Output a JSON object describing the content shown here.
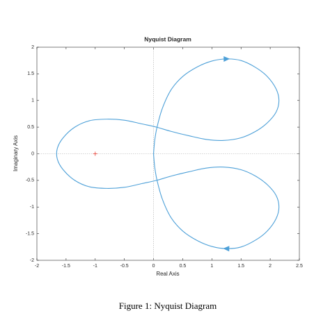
{
  "chart_data": {
    "type": "line",
    "title": "Nyquist Diagram",
    "xlabel": "Real Axis",
    "ylabel": "Imaginary Axis",
    "xlim": [
      -2,
      2.5
    ],
    "ylim": [
      -2,
      2
    ],
    "xticks": [
      -2,
      -1.5,
      -1,
      -0.5,
      0,
      0.5,
      1,
      1.5,
      2,
      2.5
    ],
    "yticks": [
      -2,
      -1.5,
      -1,
      -0.5,
      0,
      0.5,
      1,
      1.5,
      2
    ],
    "x": [
      0,
      0.02,
      0.06,
      0.15,
      0.3,
      0.5,
      0.75,
      1.0,
      1.25,
      1.5,
      1.75,
      1.95,
      2.1,
      2.15,
      2.1,
      1.95,
      1.75,
      1.5,
      1.2,
      0.9,
      0.6,
      0.3,
      0.05,
      -0.2,
      -0.5,
      -0.8,
      -1.1,
      -1.35,
      -1.55,
      -1.65,
      -1.65,
      -1.55,
      -1.35,
      -1.1,
      -0.8,
      -0.5,
      -0.2,
      0.05,
      0.3,
      0.6,
      0.9,
      1.2,
      1.5,
      1.75,
      1.95,
      2.1,
      2.15,
      2.1,
      1.95,
      1.75,
      1.5,
      1.25,
      1.0,
      0.75,
      0.5,
      0.3,
      0.15,
      0.06,
      0.02,
      0
    ],
    "series": [
      {
        "color": "#4da0d8",
        "values": [
          0,
          0.25,
          0.5,
          0.85,
          1.2,
          1.45,
          1.63,
          1.74,
          1.78,
          1.75,
          1.62,
          1.45,
          1.22,
          1.0,
          0.78,
          0.58,
          0.42,
          0.3,
          0.25,
          0.27,
          0.34,
          0.42,
          0.5,
          0.56,
          0.63,
          0.65,
          0.62,
          0.5,
          0.3,
          0.1,
          -0.1,
          -0.3,
          -0.5,
          -0.62,
          -0.65,
          -0.63,
          -0.56,
          -0.5,
          -0.42,
          -0.34,
          -0.27,
          -0.25,
          -0.3,
          -0.42,
          -0.58,
          -0.78,
          -1.0,
          -1.22,
          -1.45,
          -1.62,
          -1.75,
          -1.78,
          -1.74,
          -1.63,
          -1.45,
          -1.2,
          -0.85,
          -0.5,
          -0.25,
          0
        ]
      }
    ],
    "critical_point": {
      "x": -1,
      "y": 0,
      "color": "#e8382c"
    }
  },
  "caption": "Figure 1: Nyquist Diagram"
}
